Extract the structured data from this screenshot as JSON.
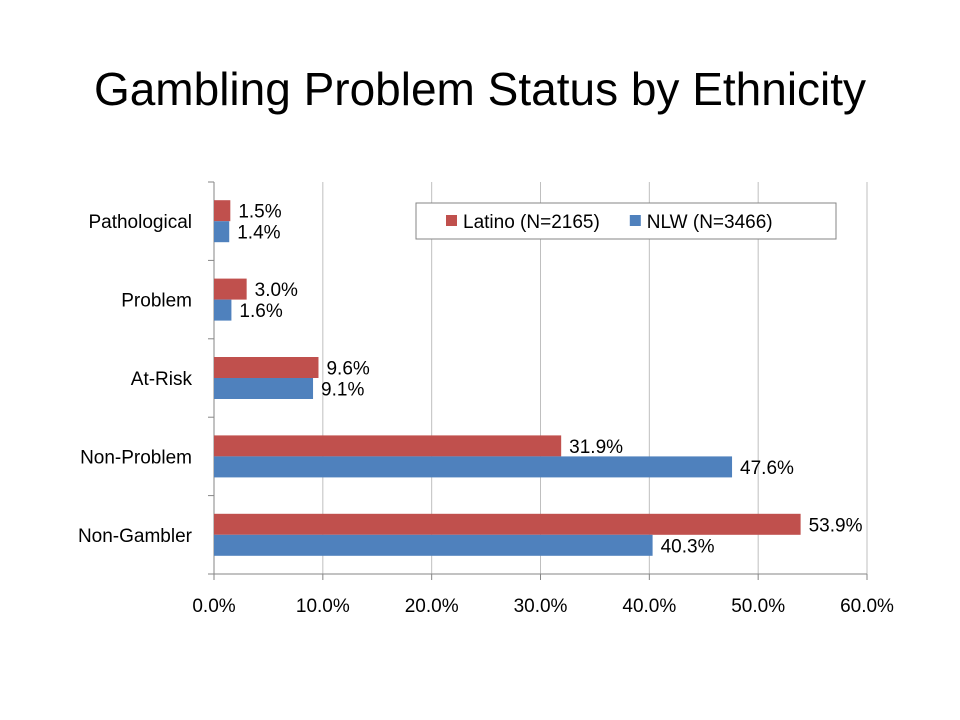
{
  "slide": {
    "title": "Gambling Problem Status by Ethnicity"
  },
  "chart_data": {
    "type": "bar",
    "orientation": "horizontal",
    "categories": [
      "Pathological",
      "Problem",
      "At-Risk",
      "Non-Problem",
      "Non-Gambler"
    ],
    "series": [
      {
        "name": "Latino (N=2165)",
        "color": "#C0504D",
        "values": [
          1.5,
          3.0,
          9.6,
          31.9,
          53.9
        ],
        "labels": [
          "1.5%",
          "3.0%",
          "9.6%",
          "31.9%",
          "53.9%"
        ]
      },
      {
        "name": "NLW (N=3466)",
        "color": "#4F81BD",
        "values": [
          1.4,
          1.6,
          9.1,
          47.6,
          40.3
        ],
        "labels": [
          "1.4%",
          "1.6%",
          "9.1%",
          "47.6%",
          "40.3%"
        ]
      }
    ],
    "xlim": [
      0,
      60
    ],
    "xticks": [
      0,
      10,
      20,
      30,
      40,
      50,
      60
    ],
    "xtick_labels": [
      "0.0%",
      "10.0%",
      "20.0%",
      "30.0%",
      "40.0%",
      "50.0%",
      "60.0%"
    ],
    "xlabel": "",
    "ylabel": "",
    "grid": "vertical",
    "legend_position": "top-right"
  }
}
